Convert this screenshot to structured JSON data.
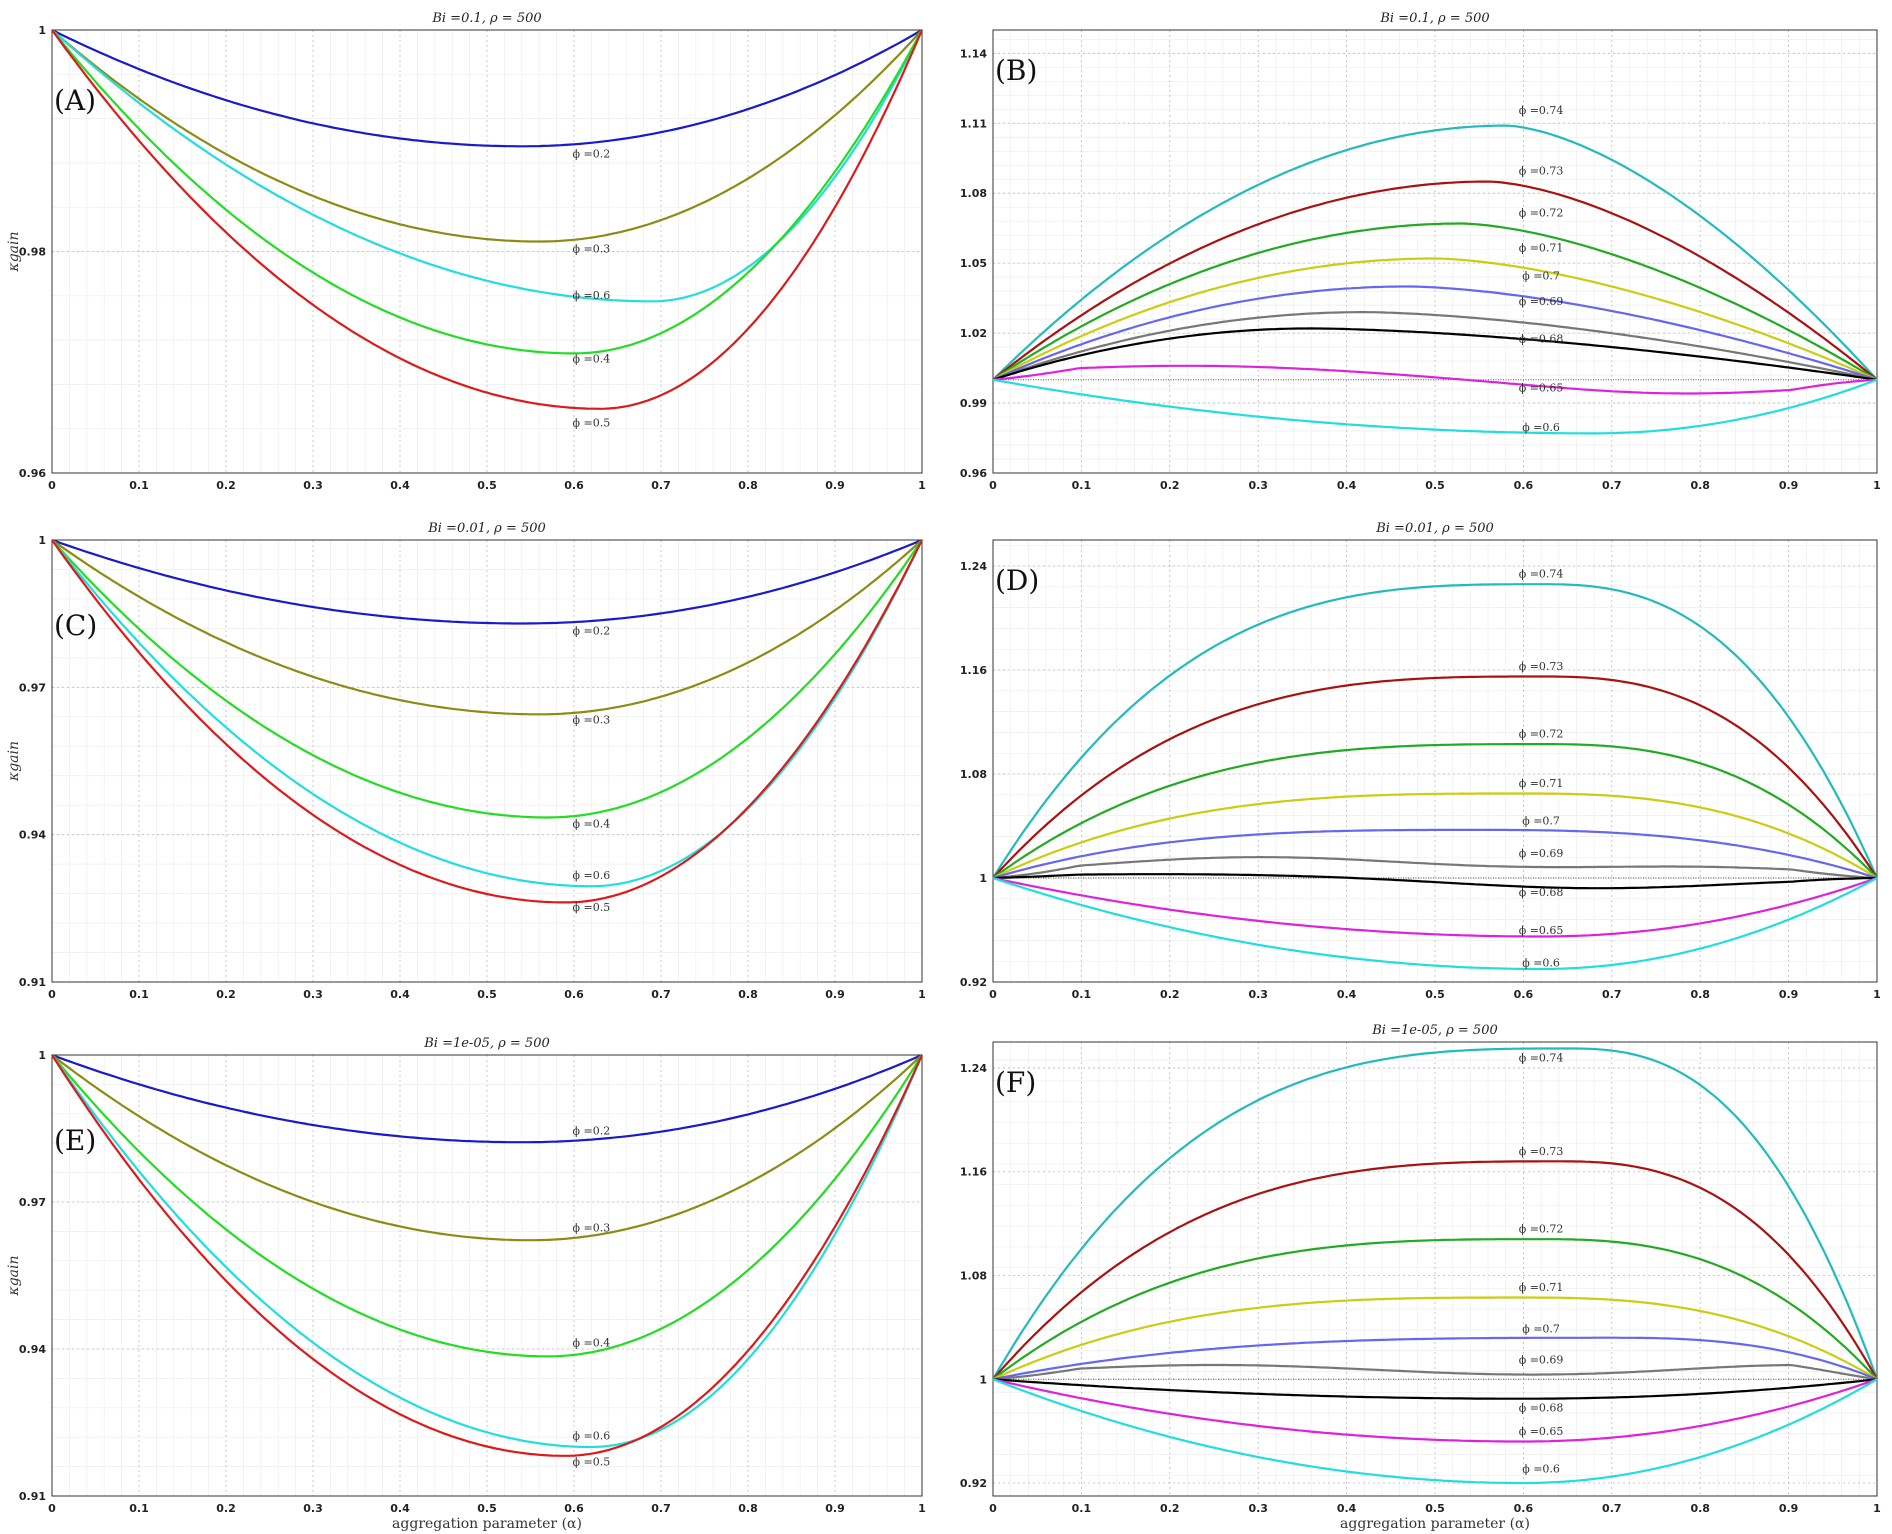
{
  "figure": {
    "xlabel": "aggregation parameter (α)",
    "ylabel": "κgain"
  },
  "chart_data": [
    {
      "panel": "(A)",
      "type": "line",
      "title": "Bi =0.1, ρ = 500",
      "xlabel": "",
      "ylabel": "κgain",
      "xlim": [
        0,
        1
      ],
      "ylim": [
        0.96,
        1
      ],
      "xticks": [
        "0",
        "0.1",
        "0.2",
        "0.3",
        "0.4",
        "0.5",
        "0.6",
        "0.7",
        "0.8",
        "0.9",
        "1"
      ],
      "yticks": [
        {
          "v": 0.96,
          "t": "0.96"
        },
        {
          "v": 0.98,
          "t": "0.98"
        },
        {
          "v": 1,
          "t": "1"
        }
      ],
      "grid": true,
      "ref_line": 1,
      "series": [
        {
          "name": "ϕ =0.2",
          "color": "#1a1acc",
          "min_x": 0.54,
          "min_y": 0.9895,
          "label_at": [
            0.62,
            0.9885
          ]
        },
        {
          "name": "ϕ =0.3",
          "color": "#8c8c14",
          "min_x": 0.56,
          "min_y": 0.9809,
          "label_at": [
            0.62,
            0.9799
          ]
        },
        {
          "name": "ϕ =0.6",
          "color": "#22dddd",
          "min_x": 0.69,
          "min_y": 0.9755,
          "label_at": [
            0.62,
            0.9757
          ]
        },
        {
          "name": "ϕ =0.4",
          "color": "#22dd22",
          "min_x": 0.6,
          "min_y": 0.9708,
          "label_at": [
            0.62,
            0.97
          ]
        },
        {
          "name": "ϕ =0.5",
          "color": "#dd1a1a",
          "min_x": 0.63,
          "min_y": 0.9658,
          "label_at": [
            0.62,
            0.9642
          ]
        }
      ]
    },
    {
      "panel": "(B)",
      "type": "line",
      "title": "Bi =0.1, ρ = 500",
      "xlabel": "",
      "ylabel": "",
      "xlim": [
        0,
        1
      ],
      "ylim": [
        0.96,
        1.15
      ],
      "xticks": [
        "0",
        "0.1",
        "0.2",
        "0.3",
        "0.4",
        "0.5",
        "0.6",
        "0.7",
        "0.8",
        "0.9",
        "1"
      ],
      "yticks": [
        {
          "v": 0.96,
          "t": "0.96"
        },
        {
          "v": 0.99,
          "t": "0.99"
        },
        {
          "v": 1.02,
          "t": "1.02"
        },
        {
          "v": 1.05,
          "t": "1.05"
        },
        {
          "v": 1.08,
          "t": "1.08"
        },
        {
          "v": 1.11,
          "t": "1.11"
        },
        {
          "v": 1.14,
          "t": "1.14"
        }
      ],
      "grid": true,
      "ref_line": 1,
      "series": [
        {
          "name": "ϕ =0.74",
          "color": "#22bbbb",
          "peak_x": 0.58,
          "peak_y": 1.109,
          "shape": 1,
          "label_at": [
            0.62,
            1.114
          ]
        },
        {
          "name": "ϕ =0.73",
          "color": "#aa1111",
          "peak_x": 0.56,
          "peak_y": 1.085,
          "shape": 1,
          "label_at": [
            0.62,
            1.088
          ]
        },
        {
          "name": "ϕ =0.72",
          "color": "#22aa22",
          "peak_x": 0.53,
          "peak_y": 1.067,
          "shape": 1,
          "label_at": [
            0.62,
            1.07
          ]
        },
        {
          "name": "ϕ =0.71",
          "color": "#cccc11",
          "peak_x": 0.5,
          "peak_y": 1.052,
          "shape": 1,
          "label_at": [
            0.62,
            1.055
          ]
        },
        {
          "name": "ϕ =0.7",
          "color": "#6666ee",
          "peak_x": 0.47,
          "peak_y": 1.04,
          "shape": 1,
          "label_at": [
            0.62,
            1.043
          ]
        },
        {
          "name": "ϕ =0.69",
          "color": "#777777",
          "peak_x": 0.42,
          "peak_y": 1.029,
          "shape": 1,
          "label_at": [
            0.62,
            1.032
          ]
        },
        {
          "name": "ϕ =0.68",
          "color": "#000000",
          "peak_x": 0.36,
          "peak_y": 1.022,
          "shape": 1,
          "label_at": [
            0.62,
            1.016
          ]
        },
        {
          "name": "ϕ =0.65",
          "color": "#dd22dd",
          "wave": [
            0.22,
            1.006,
            0.78,
            0.994
          ],
          "label_at": [
            0.62,
            0.995
          ]
        },
        {
          "name": "ϕ =0.6",
          "color": "#22dddd",
          "peak_x": 0.68,
          "peak_y": 0.977,
          "shape": 0,
          "label_at": [
            0.62,
            0.978
          ]
        }
      ]
    },
    {
      "panel": "(C)",
      "type": "line",
      "title": "Bi =0.01, ρ = 500",
      "xlabel": "",
      "ylabel": "κgain",
      "xlim": [
        0,
        1
      ],
      "ylim": [
        0.91,
        1
      ],
      "xticks": [
        "0",
        "0.1",
        "0.2",
        "0.3",
        "0.4",
        "0.5",
        "0.6",
        "0.7",
        "0.8",
        "0.9",
        "1"
      ],
      "yticks": [
        {
          "v": 0.91,
          "t": "0.91"
        },
        {
          "v": 0.94,
          "t": "0.94"
        },
        {
          "v": 0.97,
          "t": "0.97"
        },
        {
          "v": 1,
          "t": "1"
        }
      ],
      "grid": true,
      "ref_line": 1,
      "series": [
        {
          "name": "ϕ =0.2",
          "color": "#1a1acc",
          "min_x": 0.54,
          "min_y": 0.983,
          "label_at": [
            0.62,
            0.9808
          ]
        },
        {
          "name": "ϕ =0.3",
          "color": "#8c8c14",
          "min_x": 0.56,
          "min_y": 0.9645,
          "label_at": [
            0.62,
            0.9626
          ]
        },
        {
          "name": "ϕ =0.4",
          "color": "#22dd22",
          "min_x": 0.57,
          "min_y": 0.9435,
          "label_at": [
            0.62,
            0.9415
          ]
        },
        {
          "name": "ϕ =0.6",
          "color": "#22dddd",
          "min_x": 0.62,
          "min_y": 0.9295,
          "label_at": [
            0.62,
            0.931
          ]
        },
        {
          "name": "ϕ =0.5",
          "color": "#dd1a1a",
          "min_x": 0.59,
          "min_y": 0.9262,
          "label_at": [
            0.62,
            0.9245
          ]
        }
      ]
    },
    {
      "panel": "(D)",
      "type": "line",
      "title": "Bi =0.01, ρ = 500",
      "xlabel": "",
      "ylabel": "",
      "xlim": [
        0,
        1
      ],
      "ylim": [
        0.92,
        1.26
      ],
      "xticks": [
        "0",
        "0.1",
        "0.2",
        "0.3",
        "0.4",
        "0.5",
        "0.6",
        "0.7",
        "0.8",
        "0.9",
        "1"
      ],
      "yticks": [
        {
          "v": 0.92,
          "t": "0.92"
        },
        {
          "v": 1,
          "t": "1"
        },
        {
          "v": 1.08,
          "t": "1.08"
        },
        {
          "v": 1.16,
          "t": "1.16"
        },
        {
          "v": 1.24,
          "t": "1.24"
        }
      ],
      "grid": true,
      "ref_line": 1,
      "series": [
        {
          "name": "ϕ =0.74",
          "color": "#22bbbb",
          "peak_x": 0.62,
          "peak_y": 1.226,
          "shape": 2,
          "label_at": [
            0.62,
            1.231
          ]
        },
        {
          "name": "ϕ =0.73",
          "color": "#aa1111",
          "peak_x": 0.62,
          "peak_y": 1.155,
          "shape": 2,
          "label_at": [
            0.62,
            1.16
          ]
        },
        {
          "name": "ϕ =0.72",
          "color": "#22aa22",
          "peak_x": 0.62,
          "peak_y": 1.103,
          "shape": 2,
          "label_at": [
            0.62,
            1.108
          ]
        },
        {
          "name": "ϕ =0.71",
          "color": "#cccc11",
          "peak_x": 0.6,
          "peak_y": 1.065,
          "shape": 2,
          "label_at": [
            0.62,
            1.07
          ]
        },
        {
          "name": "ϕ =0.7",
          "color": "#6666ee",
          "peak_x": 0.55,
          "peak_y": 1.037,
          "shape": 2,
          "label_at": [
            0.62,
            1.041
          ]
        },
        {
          "name": "ϕ =0.69",
          "color": "#777777",
          "wave": [
            0.3,
            1.016,
            0.8,
            1.008
          ],
          "label_at": [
            0.62,
            1.016
          ]
        },
        {
          "name": "ϕ =0.68",
          "color": "#000000",
          "wave": [
            0.2,
            1.003,
            0.68,
            0.992
          ],
          "label_at": [
            0.62,
            0.986
          ]
        },
        {
          "name": "ϕ =0.65",
          "color": "#dd22dd",
          "peak_x": 0.62,
          "peak_y": 0.955,
          "shape": 0,
          "label_at": [
            0.62,
            0.957
          ]
        },
        {
          "name": "ϕ =0.6",
          "color": "#22dddd",
          "peak_x": 0.62,
          "peak_y": 0.93,
          "shape": 0,
          "label_at": [
            0.62,
            0.932
          ]
        }
      ]
    },
    {
      "panel": "(E)",
      "type": "line",
      "title": "Bi =1e-05, ρ = 500",
      "xlabel": "aggregation parameter (α)",
      "ylabel": "κgain",
      "xlim": [
        0,
        1
      ],
      "ylim": [
        0.91,
        1
      ],
      "xticks": [
        "0",
        "0.1",
        "0.2",
        "0.3",
        "0.4",
        "0.5",
        "0.6",
        "0.7",
        "0.8",
        "0.9",
        "1"
      ],
      "yticks": [
        {
          "v": 0.91,
          "t": "0.91"
        },
        {
          "v": 0.94,
          "t": "0.94"
        },
        {
          "v": 0.97,
          "t": "0.97"
        },
        {
          "v": 1,
          "t": "1"
        }
      ],
      "grid": true,
      "ref_line": 1,
      "series": [
        {
          "name": "ϕ =0.2",
          "color": "#1a1acc",
          "min_x": 0.54,
          "min_y": 0.9822,
          "label_at": [
            0.62,
            0.9838
          ]
        },
        {
          "name": "ϕ =0.3",
          "color": "#8c8c14",
          "min_x": 0.55,
          "min_y": 0.9622,
          "label_at": [
            0.62,
            0.964
          ]
        },
        {
          "name": "ϕ =0.4",
          "color": "#22dd22",
          "min_x": 0.57,
          "min_y": 0.9385,
          "label_at": [
            0.62,
            0.9405
          ]
        },
        {
          "name": "ϕ =0.6",
          "color": "#22dddd",
          "min_x": 0.62,
          "min_y": 0.92,
          "label_at": [
            0.62,
            0.9215
          ]
        },
        {
          "name": "ϕ =0.5",
          "color": "#dd1a1a",
          "min_x": 0.59,
          "min_y": 0.9182,
          "label_at": [
            0.62,
            0.9162
          ]
        }
      ]
    },
    {
      "panel": "(F)",
      "type": "line",
      "title": "Bi =1e-05, ρ = 500",
      "xlabel": "aggregation parameter (α)",
      "ylabel": "",
      "xlim": [
        0,
        1
      ],
      "ylim": [
        0.91,
        1.26
      ],
      "xticks": [
        "0",
        "0.1",
        "0.2",
        "0.3",
        "0.4",
        "0.5",
        "0.6",
        "0.7",
        "0.8",
        "0.9",
        "1"
      ],
      "yticks": [
        {
          "v": 0.92,
          "t": "0.92"
        },
        {
          "v": 1,
          "t": "1"
        },
        {
          "v": 1.08,
          "t": "1.08"
        },
        {
          "v": 1.16,
          "t": "1.16"
        },
        {
          "v": 1.24,
          "t": "1.24"
        }
      ],
      "grid": true,
      "ref_line": 1,
      "series": [
        {
          "name": "ϕ =0.74",
          "color": "#22bbbb",
          "peak_x": 0.65,
          "peak_y": 1.255,
          "shape": 2,
          "label_at": [
            0.62,
            1.245
          ]
        },
        {
          "name": "ϕ =0.73",
          "color": "#aa1111",
          "peak_x": 0.64,
          "peak_y": 1.168,
          "shape": 2,
          "label_at": [
            0.62,
            1.173
          ]
        },
        {
          "name": "ϕ =0.72",
          "color": "#22aa22",
          "peak_x": 0.62,
          "peak_y": 1.108,
          "shape": 2,
          "label_at": [
            0.62,
            1.113
          ]
        },
        {
          "name": "ϕ =0.71",
          "color": "#cccc11",
          "peak_x": 0.6,
          "peak_y": 1.063,
          "shape": 2,
          "label_at": [
            0.62,
            1.068
          ]
        },
        {
          "name": "ϕ =0.7",
          "color": "#6666ee",
          "peak_x": 0.7,
          "peak_y": 1.032,
          "shape": 2,
          "label_at": [
            0.62,
            1.036
          ]
        },
        {
          "name": "ϕ =0.69",
          "color": "#777777",
          "wave": [
            0.25,
            1.011,
            0.92,
            1.011
          ],
          "label_at": [
            0.62,
            1.012
          ]
        },
        {
          "name": "ϕ =0.68",
          "color": "#000000",
          "peak_x": 0.6,
          "peak_y": 0.985,
          "shape": 0,
          "label_at": [
            0.62,
            0.975
          ]
        },
        {
          "name": "ϕ =0.65",
          "color": "#dd22dd",
          "peak_x": 0.6,
          "peak_y": 0.952,
          "shape": 0,
          "label_at": [
            0.62,
            0.957
          ]
        },
        {
          "name": "ϕ =0.6",
          "color": "#22dddd",
          "peak_x": 0.6,
          "peak_y": 0.92,
          "shape": 0,
          "label_at": [
            0.62,
            0.928
          ]
        }
      ]
    }
  ]
}
